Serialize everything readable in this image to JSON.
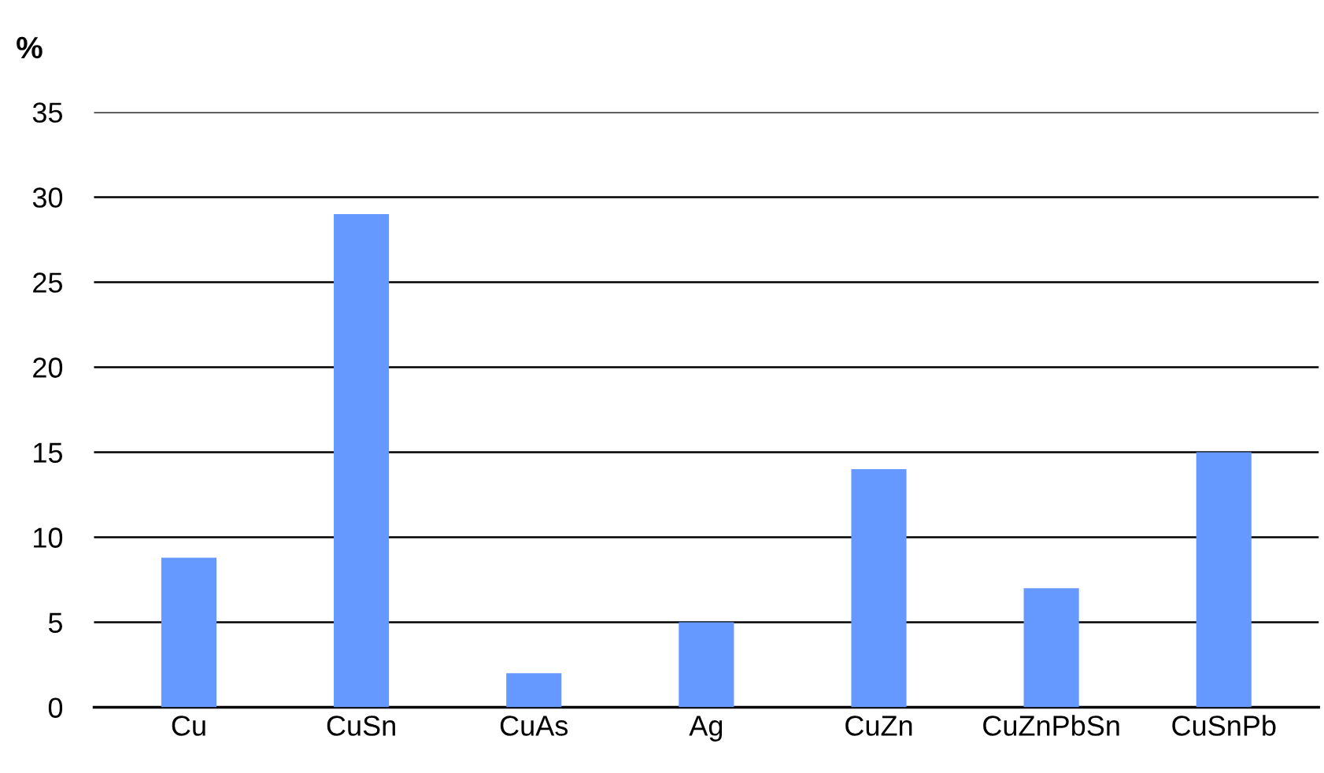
{
  "chart_data": {
    "type": "bar",
    "ylabel": "%",
    "categories": [
      "Cu",
      "CuSn",
      "CuAs",
      "Ag",
      "CuZn",
      "CuZnPbSn",
      "CuSnPb"
    ],
    "values": [
      8.8,
      29,
      2,
      5,
      14,
      7,
      15
    ],
    "color": "#6699ff",
    "ylim": [
      0,
      35
    ],
    "yticks": [
      0,
      5,
      10,
      15,
      20,
      25,
      30,
      35
    ],
    "grid": "y",
    "legend": false
  }
}
